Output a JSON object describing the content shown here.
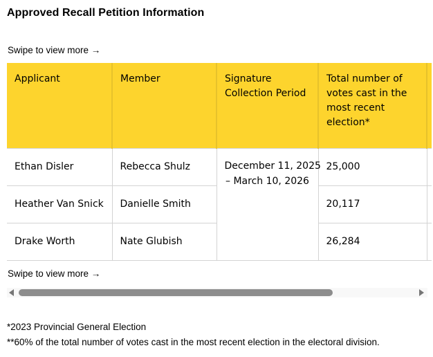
{
  "page": {
    "title": "Approved Recall Petition Information",
    "swipe_hint_top": "Swipe to view more →",
    "swipe_hint_bottom": "Swipe to view more →",
    "footnote_1": "*2023 Provincial General Election",
    "footnote_2": "**60% of the total number of votes cast in the most recent election in the electoral division."
  },
  "table": {
    "columns": [
      "Applicant",
      "Member",
      "Signature Collection Period",
      "Total number of votes cast in the most recent election*"
    ],
    "merged_signature_period": {
      "line1": "December 11, 2025",
      "line2": "– March 10, 2026"
    },
    "rows": [
      {
        "applicant": "Ethan Disler",
        "member": "Rebecca Shulz",
        "votes": "25,000"
      },
      {
        "applicant": "Heather Van Snick",
        "member": "Danielle Smith",
        "votes": "20,117"
      },
      {
        "applicant": "Drake Worth",
        "member": "Nate Glubish",
        "votes": "26,284"
      }
    ]
  },
  "colors": {
    "accent-yellow": "#fdd42d",
    "header-divider": "#e7c22b",
    "cell-border": "#d3d3d3",
    "thumb": "#8d8d8d",
    "arrow": "#767676",
    "track": "#f8f8f8",
    "text": "#000000"
  }
}
